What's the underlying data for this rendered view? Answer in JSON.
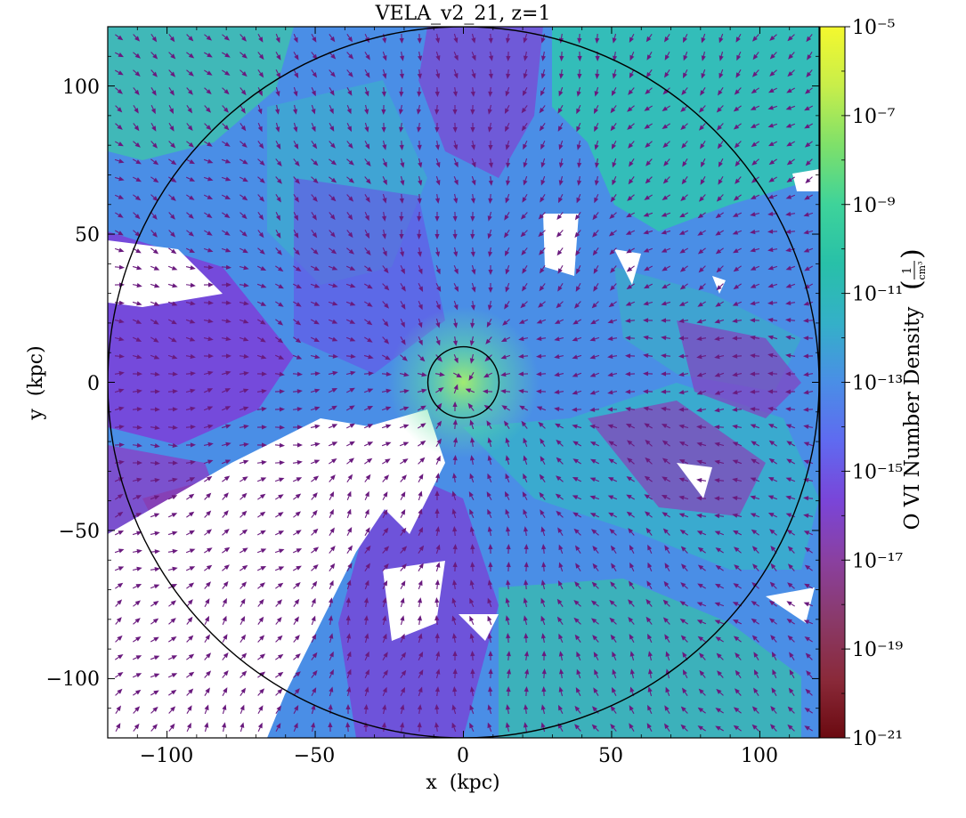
{
  "chart_data": {
    "type": "heatmap",
    "title": "VELA_v2_21, z=1",
    "xlabel": "x  (kpc)",
    "ylabel": "y  (kpc)",
    "xlim": [
      -120,
      120
    ],
    "ylim": [
      -120,
      120
    ],
    "x_ticks": [
      -100,
      -50,
      0,
      50,
      100
    ],
    "y_ticks": [
      -100,
      -50,
      0,
      50,
      100
    ],
    "x_tick_labels": [
      "−100",
      "−50",
      "0",
      "50",
      "100"
    ],
    "y_tick_labels": [
      "−100",
      "−50",
      "0",
      "50",
      "100"
    ],
    "colorbar": {
      "label": "O VI Number Density",
      "unit_numerator": "1",
      "unit_denominator": "cm³",
      "scale": "log",
      "range_log10": [
        -21,
        -5
      ],
      "tick_exponents": [
        -5,
        -7,
        -9,
        -11,
        -13,
        -15,
        -17,
        -19,
        -21
      ],
      "tick_labels": [
        "10⁻⁵",
        "10⁻⁷",
        "10⁻⁹",
        "10⁻¹¹",
        "10⁻¹³",
        "10⁻¹⁵",
        "10⁻¹⁷",
        "10⁻¹⁹",
        "10⁻²¹"
      ],
      "colormap": [
        "#7a0403",
        "#9b2a0c",
        "#d23105",
        "#fb8022",
        "#fabb3c",
        "#e1dd37",
        "#a4fc3b",
        "#46f884",
        "#1ae4b6",
        "#2ab0f2",
        "#4686fb",
        "#3e4ab0",
        "#6a2cb0",
        "#9b38c8",
        "#c3a2ff"
      ],
      "colormap_display": [
        "#6b0a10",
        "#8a2a3a",
        "#8a3a6a",
        "#8a40a0",
        "#7a45d8",
        "#5f6af0",
        "#4a8ee6",
        "#34b0c8",
        "#28c0a8",
        "#3ed39a",
        "#7ee06a",
        "#c8ee4a",
        "#f4f82e"
      ]
    },
    "overlay_circles_kpc": [
      120,
      12
    ],
    "vector_field": "velocity quiver arrows (radial, mostly infall)",
    "grid": false,
    "legend": "none"
  }
}
